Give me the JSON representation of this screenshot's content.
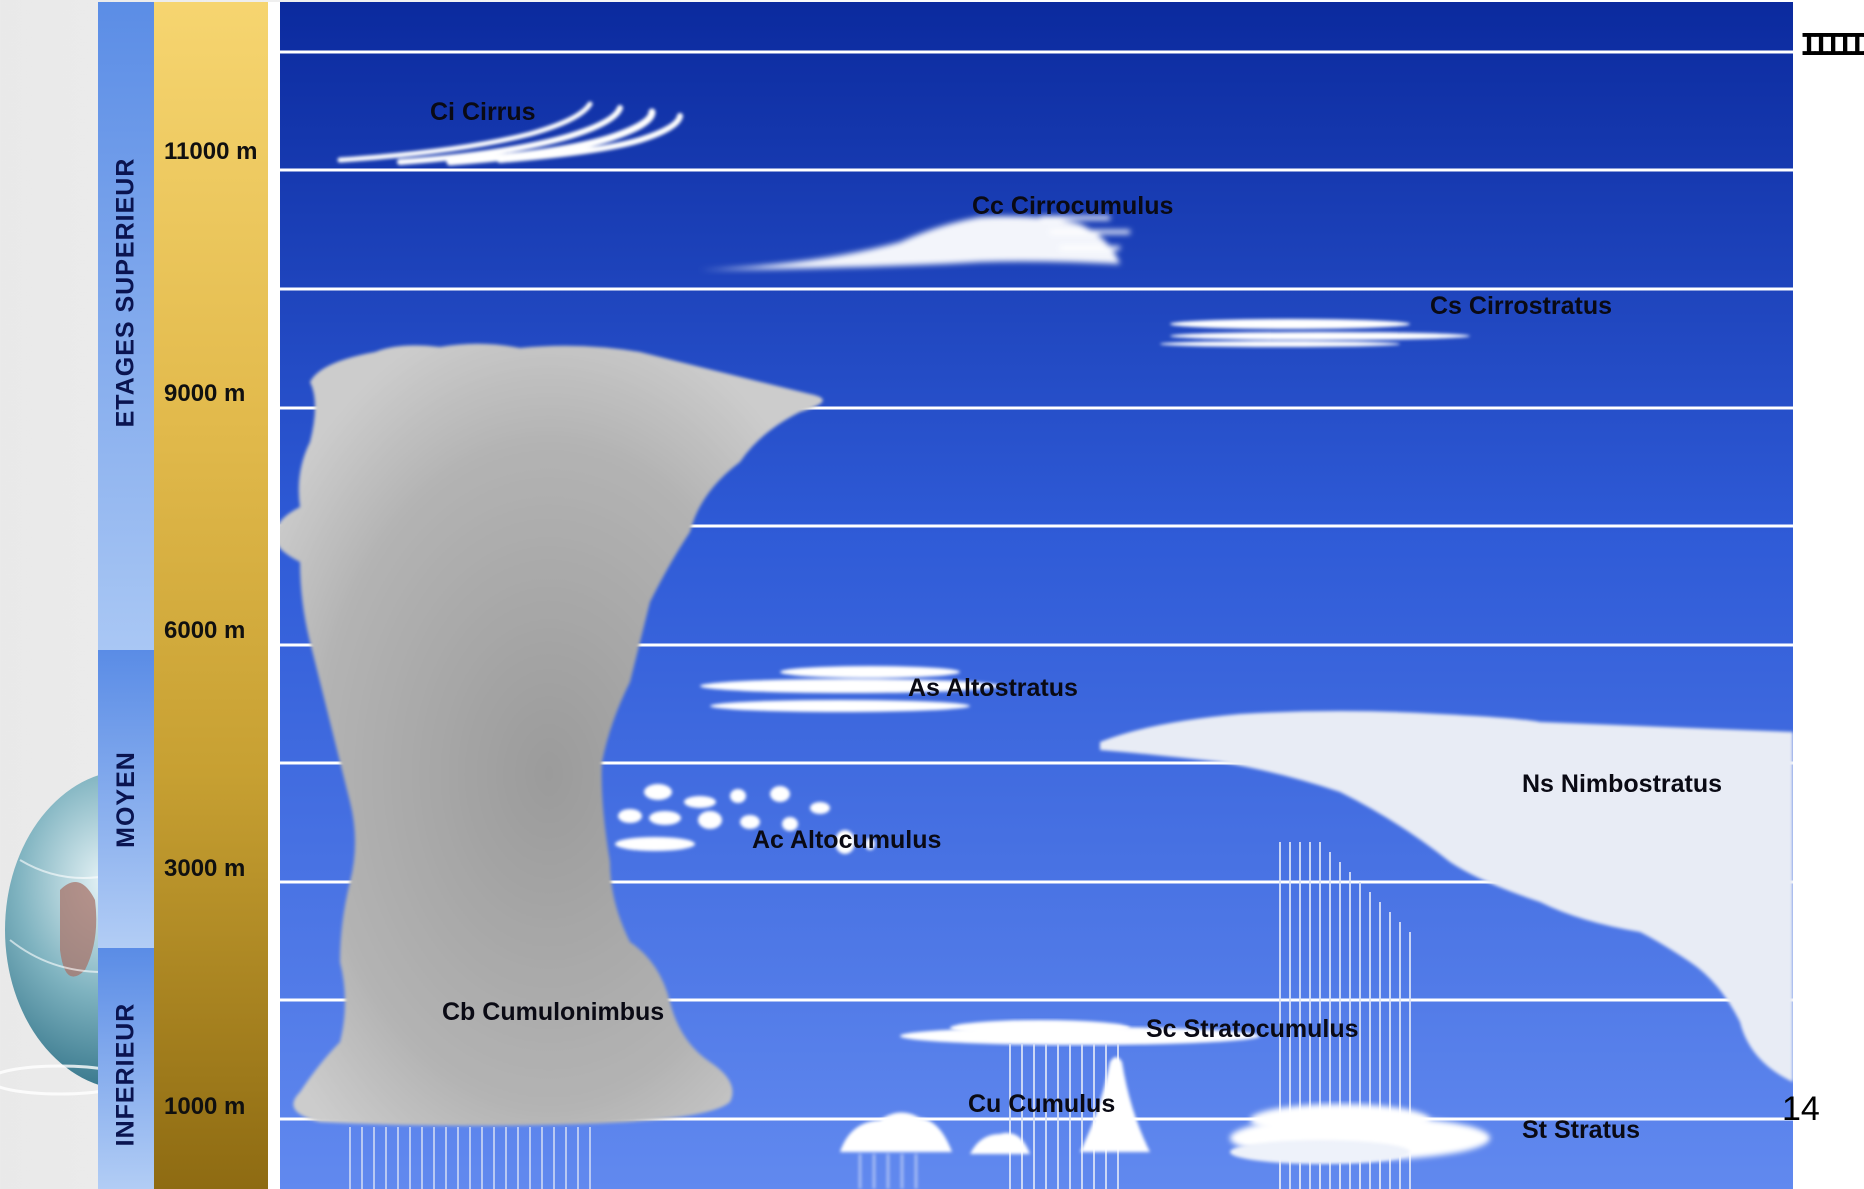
{
  "tiers": {
    "superieur": "ETAGES SUPERIEUR",
    "moyen": "MOYEN",
    "inferieur": "INFERIEUR"
  },
  "altitudes": {
    "a11000": "11000 m",
    "a9000": "9000 m",
    "a6000": "6000 m",
    "a3000": "3000 m",
    "a1000": "1000 m"
  },
  "clouds": {
    "cirrus": "Ci Cirrus",
    "cirrocumulus": "Cc Cirrocumulus",
    "cirrostratus": "Cs Cirrostratus",
    "altostratus": "As Altostratus",
    "altocumulus": "Ac  Altocumulus",
    "nimbostratus": "Ns Nimbostratus",
    "cumulonimbus": "Cb Cumulonimbus",
    "stratocumulus": "Sc Stratocumulus",
    "cumulus": "Cu Cumulus",
    "stratus": "St Stratus"
  },
  "page_number": "14",
  "decor_ticks": "IIIIII",
  "colors": {
    "sky_top": "#0b2a9e",
    "sky_bottom": "#5f86ef",
    "tier_bar_top": "#5a8de8",
    "altitude_bar_top": "#f3cf6a",
    "altitude_bar_bottom": "#8d6a10"
  }
}
